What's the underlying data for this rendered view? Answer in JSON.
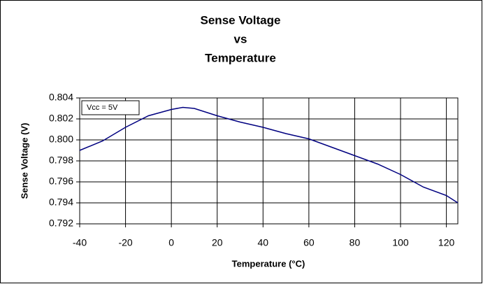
{
  "chart_data": {
    "type": "line",
    "title": [
      "Sense Voltage",
      "vs",
      "Temperature"
    ],
    "x_label": "Temperature (°C)",
    "y_label": "Sense Voltage (V)",
    "annotation": "Vcc = 5V",
    "x": [
      -40,
      -30,
      -20,
      -10,
      0,
      5,
      10,
      20,
      30,
      40,
      50,
      60,
      70,
      80,
      90,
      100,
      110,
      120,
      125
    ],
    "series": [
      {
        "name": "Sense Voltage",
        "color": "#000080",
        "values": [
          0.799,
          0.7999,
          0.8012,
          0.8023,
          0.8029,
          0.8031,
          0.803,
          0.8023,
          0.8017,
          0.8012,
          0.8006,
          0.8001,
          0.7993,
          0.7985,
          0.7977,
          0.7967,
          0.7955,
          0.7947,
          0.794
        ]
      }
    ],
    "xlim": [
      -40,
      125
    ],
    "xticks": [
      -40,
      -20,
      0,
      20,
      40,
      60,
      80,
      100,
      120
    ],
    "ylim": [
      0.792,
      0.804
    ],
    "yticks": [
      0.792,
      0.794,
      0.796,
      0.798,
      {
        "value": 0.8,
        "label": "0.800"
      },
      0.802,
      0.804
    ],
    "grid": true
  }
}
